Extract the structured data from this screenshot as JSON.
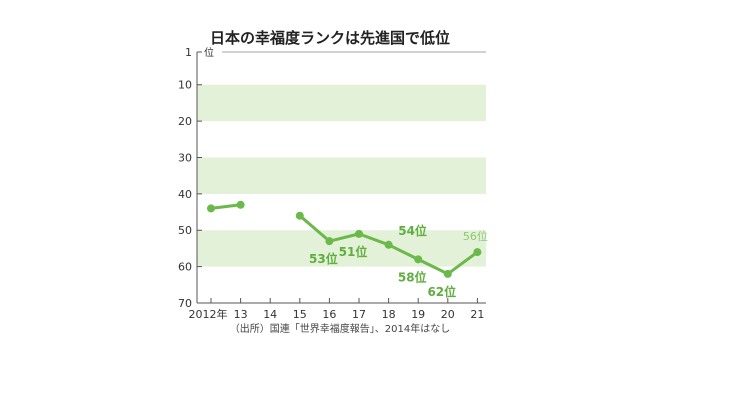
{
  "chart_data": {
    "type": "line",
    "title": "日本の幸福度ランクは先進国で低位",
    "y_unit": "位",
    "ylim": [
      1,
      70
    ],
    "y_ticks": [
      1,
      10,
      20,
      30,
      40,
      50,
      60,
      70
    ],
    "y_inverted": true,
    "x_labels": [
      "2012年",
      "13",
      "14",
      "15",
      "16",
      "17",
      "18",
      "19",
      "20",
      "21"
    ],
    "x": [
      2012,
      2013,
      2014,
      2015,
      2016,
      2017,
      2018,
      2019,
      2020,
      2021
    ],
    "series": [
      {
        "values": [
          44,
          43,
          null,
          46,
          53,
          51,
          54,
          58,
          62,
          56
        ]
      }
    ],
    "bands": [
      [
        10,
        20
      ],
      [
        30,
        40
      ],
      [
        50,
        60
      ]
    ],
    "data_labels": [
      {
        "x": 2016,
        "text": "53位",
        "position": "below"
      },
      {
        "x": 2017,
        "text": "51位",
        "position": "below"
      },
      {
        "x": 2018,
        "text": "54位",
        "position": "above-right"
      },
      {
        "x": 2019,
        "text": "58位",
        "position": "below"
      },
      {
        "x": 2020,
        "text": "62位",
        "position": "below"
      },
      {
        "x": 2021,
        "text": "56位",
        "position": "above"
      }
    ],
    "source": "（出所）国連「世界幸福度報告」、2014年はなし",
    "colors": {
      "line": "#6ab94a",
      "band": "#e2f1d8",
      "axis": "#555555"
    }
  }
}
